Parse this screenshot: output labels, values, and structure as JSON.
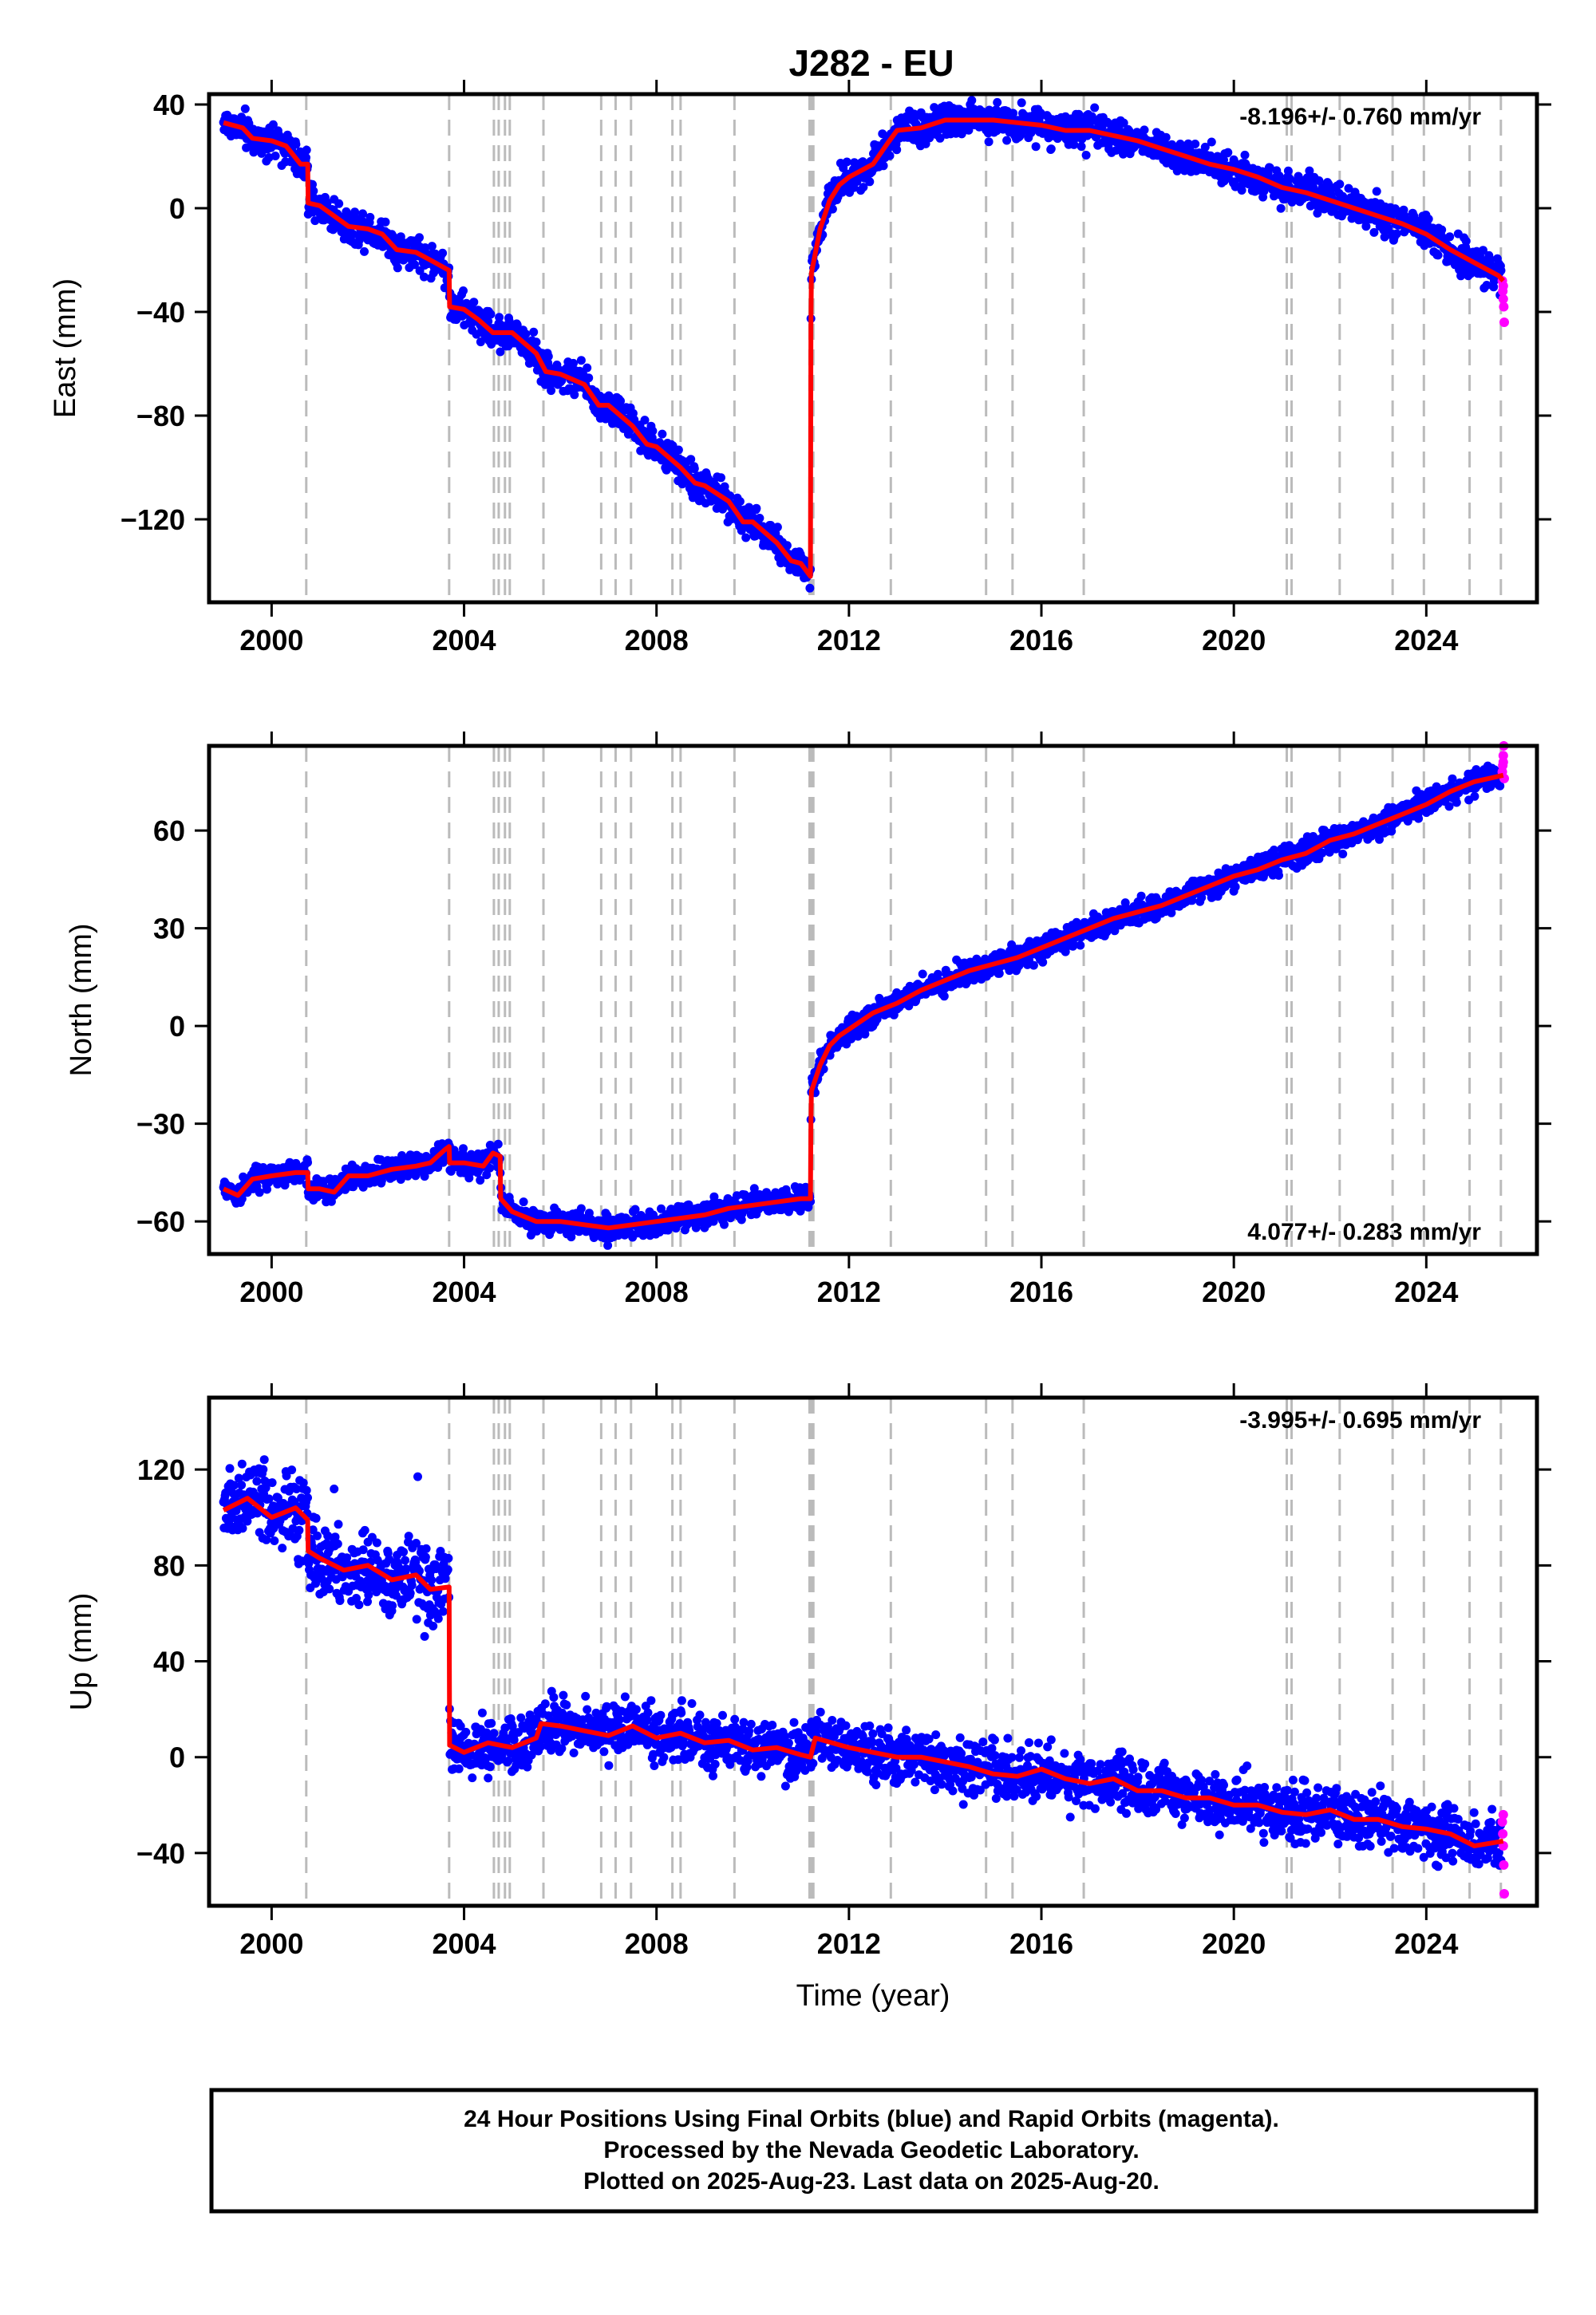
{
  "title": "J282 - EU",
  "footer": {
    "line1": "24 Hour Positions Using Final Orbits (blue) and Rapid Orbits (magenta).",
    "line2": "Processed by the Nevada Geodetic Laboratory.",
    "line3": "Plotted on 2025-Aug-23. Last data on 2025-Aug-20."
  },
  "colors": {
    "final": "#0000ff",
    "rapid": "#ff00ff",
    "model": "#ff0000",
    "steps": "#bbbbbb"
  },
  "chart_data": [
    {
      "type": "scatter",
      "component": "East",
      "ylabel": "East (mm)",
      "xlabel": "",
      "xlim": [
        1998.7,
        2026.3
      ],
      "ylim": [
        -152,
        44
      ],
      "xticks": [
        2000,
        2004,
        2008,
        2012,
        2016,
        2020,
        2024
      ],
      "yticks": [
        -120,
        -80,
        -40,
        0,
        40
      ],
      "grid": false,
      "rate": "-8.196+/- 0.760 mm/yr",
      "rate_position": "top-right",
      "model": [
        [
          1999.0,
          33
        ],
        [
          1999.4,
          31
        ],
        [
          1999.6,
          27
        ],
        [
          2000.0,
          26
        ],
        [
          2000.3,
          24
        ],
        [
          2000.6,
          17
        ],
        [
          2000.75,
          17
        ],
        [
          2000.76,
          2
        ],
        [
          2001.0,
          1
        ],
        [
          2001.3,
          -3
        ],
        [
          2001.6,
          -7
        ],
        [
          2002.0,
          -8
        ],
        [
          2002.3,
          -10
        ],
        [
          2002.6,
          -16
        ],
        [
          2003.0,
          -17
        ],
        [
          2003.3,
          -20
        ],
        [
          2003.69,
          -24
        ],
        [
          2003.7,
          -38
        ],
        [
          2004.0,
          -39
        ],
        [
          2004.3,
          -43
        ],
        [
          2004.6,
          -48
        ],
        [
          2005.0,
          -48
        ],
        [
          2005.5,
          -56
        ],
        [
          2005.7,
          -63
        ],
        [
          2006.0,
          -64
        ],
        [
          2006.5,
          -68
        ],
        [
          2006.8,
          -76
        ],
        [
          2007.0,
          -76
        ],
        [
          2007.5,
          -84
        ],
        [
          2007.8,
          -91
        ],
        [
          2008.0,
          -92
        ],
        [
          2008.5,
          -100
        ],
        [
          2008.8,
          -106
        ],
        [
          2009.0,
          -107
        ],
        [
          2009.5,
          -113
        ],
        [
          2009.8,
          -121
        ],
        [
          2010.0,
          -121
        ],
        [
          2010.5,
          -129
        ],
        [
          2010.8,
          -136
        ],
        [
          2011.0,
          -137
        ],
        [
          2011.2,
          -142
        ],
        [
          2011.21,
          -45
        ],
        [
          2011.22,
          -25
        ],
        [
          2011.4,
          -8
        ],
        [
          2011.6,
          3
        ],
        [
          2011.8,
          9
        ],
        [
          2012.0,
          12
        ],
        [
          2012.5,
          17
        ],
        [
          2012.8,
          25
        ],
        [
          2013.0,
          30
        ],
        [
          2013.5,
          31
        ],
        [
          2014.0,
          34
        ],
        [
          2014.5,
          34
        ],
        [
          2015.0,
          34
        ],
        [
          2015.5,
          33
        ],
        [
          2016.0,
          32
        ],
        [
          2016.5,
          30
        ],
        [
          2017.0,
          30
        ],
        [
          2017.5,
          28
        ],
        [
          2018.0,
          26
        ],
        [
          2018.5,
          23
        ],
        [
          2019.0,
          20
        ],
        [
          2019.5,
          17
        ],
        [
          2020.0,
          15
        ],
        [
          2020.5,
          12
        ],
        [
          2021.0,
          8
        ],
        [
          2021.5,
          6
        ],
        [
          2022.0,
          3
        ],
        [
          2022.5,
          0
        ],
        [
          2023.0,
          -3
        ],
        [
          2023.5,
          -6
        ],
        [
          2024.0,
          -10
        ],
        [
          2024.5,
          -16
        ],
        [
          2025.0,
          -21
        ],
        [
          2025.5,
          -26
        ],
        [
          2025.6,
          -28
        ]
      ],
      "rapid": [
        [
          2025.58,
          -28
        ],
        [
          2025.59,
          -32
        ],
        [
          2025.6,
          -35
        ],
        [
          2025.61,
          -38
        ],
        [
          2025.62,
          -44
        ],
        [
          2025.6,
          -30
        ]
      ]
    },
    {
      "type": "scatter",
      "component": "North",
      "ylabel": "North (mm)",
      "xlabel": "",
      "xlim": [
        1998.7,
        2026.3
      ],
      "ylim": [
        -70,
        86
      ],
      "xticks": [
        2000,
        2004,
        2008,
        2012,
        2016,
        2020,
        2024
      ],
      "yticks": [
        -60,
        -30,
        0,
        30,
        60
      ],
      "grid": false,
      "rate": "4.077+/- 0.283 mm/yr",
      "rate_position": "bottom-right",
      "model": [
        [
          1999.0,
          -50
        ],
        [
          1999.3,
          -52
        ],
        [
          1999.6,
          -47
        ],
        [
          2000.0,
          -46
        ],
        [
          2000.5,
          -45
        ],
        [
          2000.75,
          -45
        ],
        [
          2000.76,
          -50
        ],
        [
          2001.0,
          -50
        ],
        [
          2001.3,
          -51
        ],
        [
          2001.6,
          -46
        ],
        [
          2002.0,
          -46
        ],
        [
          2002.5,
          -44
        ],
        [
          2003.0,
          -43
        ],
        [
          2003.3,
          -42
        ],
        [
          2003.6,
          -38
        ],
        [
          2003.69,
          -37
        ],
        [
          2003.7,
          -42
        ],
        [
          2004.0,
          -42
        ],
        [
          2004.4,
          -43
        ],
        [
          2004.6,
          -39
        ],
        [
          2004.75,
          -40
        ],
        [
          2004.76,
          -53
        ],
        [
          2005.0,
          -57
        ],
        [
          2005.5,
          -60
        ],
        [
          2006.0,
          -60
        ],
        [
          2006.5,
          -61
        ],
        [
          2007.0,
          -62
        ],
        [
          2007.5,
          -61
        ],
        [
          2008.0,
          -60
        ],
        [
          2008.5,
          -59
        ],
        [
          2009.0,
          -58
        ],
        [
          2009.5,
          -56
        ],
        [
          2010.0,
          -55
        ],
        [
          2010.5,
          -54
        ],
        [
          2011.0,
          -53
        ],
        [
          2011.2,
          -53
        ],
        [
          2011.21,
          -30
        ],
        [
          2011.22,
          -20
        ],
        [
          2011.4,
          -12
        ],
        [
          2011.6,
          -6
        ],
        [
          2011.8,
          -3
        ],
        [
          2012.0,
          -1
        ],
        [
          2012.5,
          4
        ],
        [
          2013.0,
          7
        ],
        [
          2013.5,
          11
        ],
        [
          2014.0,
          14
        ],
        [
          2014.5,
          17
        ],
        [
          2015.0,
          19
        ],
        [
          2015.5,
          21
        ],
        [
          2016.0,
          24
        ],
        [
          2016.5,
          27
        ],
        [
          2017.0,
          30
        ],
        [
          2017.5,
          33
        ],
        [
          2018.0,
          35
        ],
        [
          2018.5,
          37
        ],
        [
          2019.0,
          40
        ],
        [
          2019.5,
          43
        ],
        [
          2020.0,
          46
        ],
        [
          2020.5,
          48
        ],
        [
          2021.0,
          51
        ],
        [
          2021.5,
          53
        ],
        [
          2022.0,
          57
        ],
        [
          2022.5,
          59
        ],
        [
          2023.0,
          62
        ],
        [
          2023.5,
          65
        ],
        [
          2024.0,
          68
        ],
        [
          2024.5,
          72
        ],
        [
          2025.0,
          75
        ],
        [
          2025.6,
          77
        ]
      ],
      "rapid": [
        [
          2025.58,
          78
        ],
        [
          2025.59,
          80
        ],
        [
          2025.6,
          83
        ],
        [
          2025.61,
          86
        ],
        [
          2025.62,
          76
        ],
        [
          2025.6,
          81
        ]
      ]
    },
    {
      "type": "scatter",
      "component": "Up",
      "ylabel": "Up (mm)",
      "xlabel": "Time (year)",
      "xlim": [
        1998.7,
        2026.3
      ],
      "ylim": [
        -62,
        150
      ],
      "xticks": [
        2000,
        2004,
        2008,
        2012,
        2016,
        2020,
        2024
      ],
      "yticks": [
        -40,
        0,
        40,
        80,
        120
      ],
      "grid": false,
      "rate": "-3.995+/- 0.695 mm/yr",
      "rate_position": "top-right",
      "model": [
        [
          1999.0,
          103
        ],
        [
          1999.5,
          108
        ],
        [
          2000.0,
          100
        ],
        [
          2000.5,
          104
        ],
        [
          2000.75,
          99
        ],
        [
          2000.76,
          86
        ],
        [
          2001.0,
          83
        ],
        [
          2001.5,
          78
        ],
        [
          2002.0,
          80
        ],
        [
          2002.5,
          74
        ],
        [
          2003.0,
          76
        ],
        [
          2003.3,
          70
        ],
        [
          2003.69,
          71
        ],
        [
          2003.7,
          5
        ],
        [
          2004.0,
          2
        ],
        [
          2004.5,
          6
        ],
        [
          2005.0,
          4
        ],
        [
          2005.5,
          8
        ],
        [
          2005.6,
          14
        ],
        [
          2006.0,
          13
        ],
        [
          2006.5,
          11
        ],
        [
          2007.0,
          9
        ],
        [
          2007.5,
          13
        ],
        [
          2008.0,
          8
        ],
        [
          2008.5,
          10
        ],
        [
          2009.0,
          6
        ],
        [
          2009.5,
          7
        ],
        [
          2010.0,
          3
        ],
        [
          2010.5,
          4
        ],
        [
          2011.0,
          1
        ],
        [
          2011.2,
          0
        ],
        [
          2011.3,
          8
        ],
        [
          2012.0,
          4
        ],
        [
          2012.5,
          2
        ],
        [
          2013.0,
          0
        ],
        [
          2013.5,
          0
        ],
        [
          2014.0,
          -2
        ],
        [
          2014.5,
          -4
        ],
        [
          2015.0,
          -7
        ],
        [
          2015.5,
          -8
        ],
        [
          2016.0,
          -5
        ],
        [
          2016.5,
          -9
        ],
        [
          2017.0,
          -11
        ],
        [
          2017.5,
          -9
        ],
        [
          2018.0,
          -14
        ],
        [
          2018.5,
          -14
        ],
        [
          2019.0,
          -17
        ],
        [
          2019.5,
          -17
        ],
        [
          2020.0,
          -20
        ],
        [
          2020.5,
          -20
        ],
        [
          2021.0,
          -23
        ],
        [
          2021.5,
          -24
        ],
        [
          2022.0,
          -22
        ],
        [
          2022.5,
          -26
        ],
        [
          2023.0,
          -26
        ],
        [
          2023.5,
          -29
        ],
        [
          2024.0,
          -30
        ],
        [
          2024.5,
          -32
        ],
        [
          2025.0,
          -37
        ],
        [
          2025.6,
          -35
        ]
      ],
      "rapid": [
        [
          2025.58,
          -27
        ],
        [
          2025.59,
          -32
        ],
        [
          2025.6,
          -37
        ],
        [
          2025.61,
          -45
        ],
        [
          2025.62,
          -57
        ],
        [
          2025.6,
          -24
        ]
      ]
    }
  ],
  "step_epochs": [
    2000.72,
    2003.69,
    2004.62,
    2004.72,
    2004.85,
    2004.95,
    2005.65,
    2006.85,
    2007.15,
    2007.47,
    2008.33,
    2008.5,
    2009.62,
    2011.18,
    2011.22,
    2011.26,
    2012.87,
    2014.85,
    2015.4,
    2016.88,
    2021.1,
    2021.2,
    2022.2,
    2023.3,
    2023.95,
    2024.9,
    2025.55
  ]
}
